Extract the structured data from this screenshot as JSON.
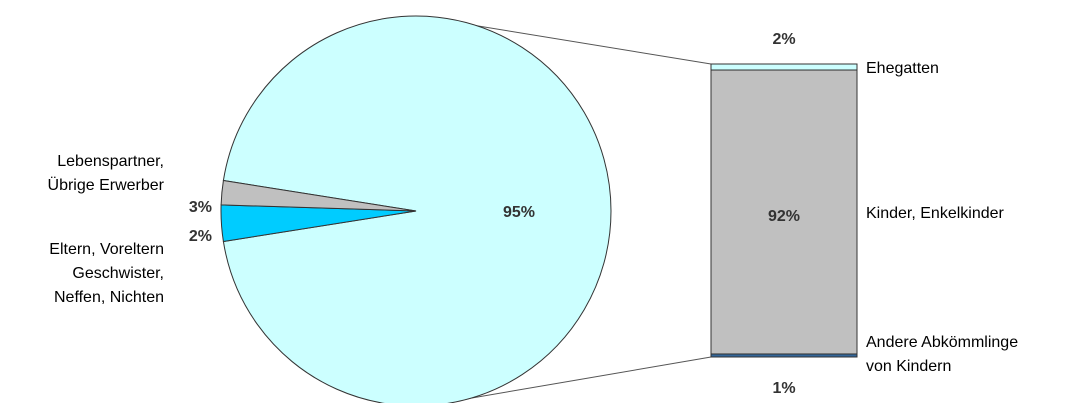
{
  "chart_data": {
    "type": "bar-of-pie",
    "pie": {
      "slices": [
        {
          "label_lines": [
            "Lebenspartner,",
            "Übrige Erwerber"
          ],
          "percent_label": "3%",
          "value": 3,
          "color": "#00ccff"
        },
        {
          "label_lines": [
            "Eltern, Voreltern",
            "Geschwister,",
            "Neffen, Nichten"
          ],
          "percent_label": "2%",
          "value": 2,
          "color": "#c0c0c0"
        },
        {
          "label_lines": [],
          "percent_label": "95%",
          "value": 95,
          "color": "#ccffff"
        }
      ]
    },
    "bar": {
      "segments": [
        {
          "label_lines": [
            "Ehegatten"
          ],
          "percent_label": "2%",
          "value": 2,
          "color": "#ccffff"
        },
        {
          "label_lines": [
            "Kinder, Enkelkinder"
          ],
          "percent_label": "92%",
          "value": 92,
          "color": "#c0c0c0"
        },
        {
          "label_lines": [
            "Andere Abkömmlinge",
            "von Kindern"
          ],
          "percent_label": "1%",
          "value": 1,
          "color": "#336699"
        }
      ]
    }
  }
}
